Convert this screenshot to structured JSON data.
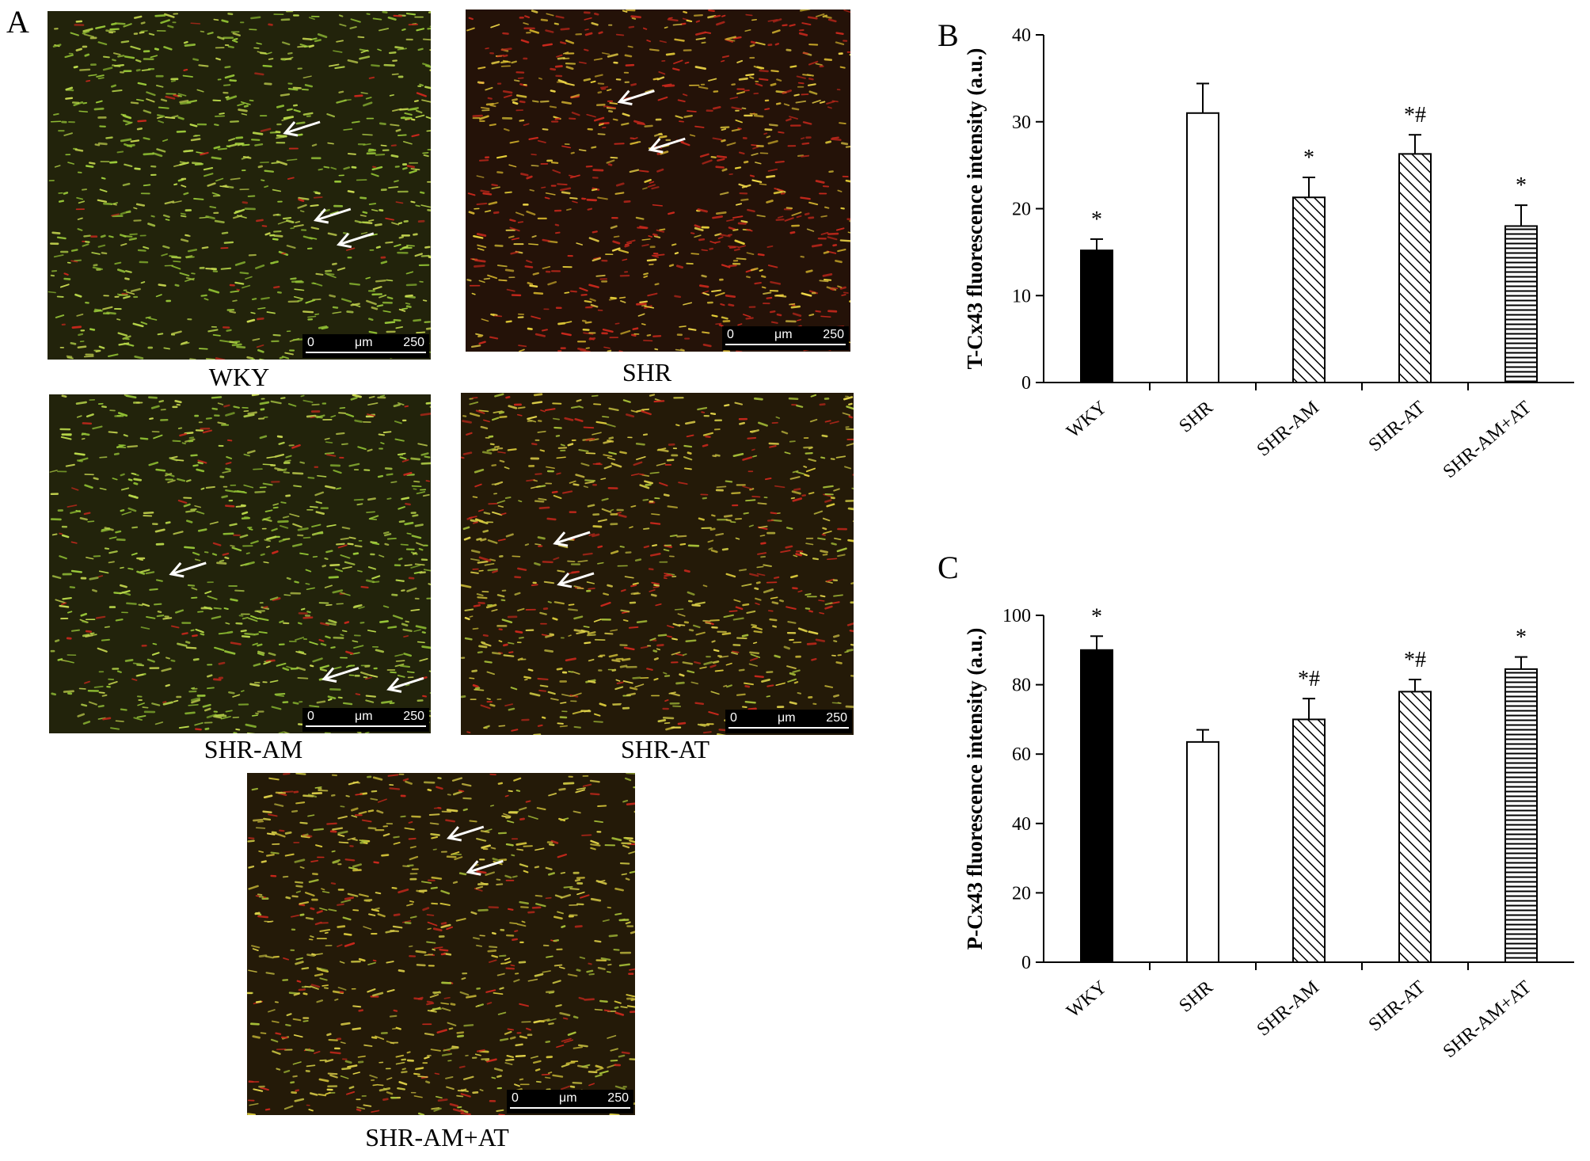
{
  "panel_a": {
    "letter": "A",
    "images": [
      {
        "caption": "WKY",
        "scale_min": "0",
        "scale_unit": "μm",
        "scale_max": "250",
        "tone": "green"
      },
      {
        "caption": "SHR",
        "scale_min": "0",
        "scale_unit": "μm",
        "scale_max": "250",
        "tone": "red-yellow"
      },
      {
        "caption": "SHR-AM",
        "scale_min": "0",
        "scale_unit": "μm",
        "scale_max": "250",
        "tone": "green"
      },
      {
        "caption": "SHR-AT",
        "scale_min": "0",
        "scale_unit": "μm",
        "scale_max": "250",
        "tone": "yellow"
      },
      {
        "caption": "SHR-AM+AT",
        "scale_min": "0",
        "scale_unit": "μm",
        "scale_max": "250",
        "tone": "yellow"
      }
    ]
  },
  "chart_data": [
    {
      "type": "bar",
      "panel": "B",
      "ylabel": "T-Cx43 fluorescence intensity (a.u.)",
      "xlabel": "",
      "ylim": [
        0,
        40
      ],
      "yticks": [
        0,
        10,
        20,
        30,
        40
      ],
      "categories": [
        "WKY",
        "SHR",
        "SHR-AM",
        "SHR-AT",
        "SHR-AM+AT"
      ],
      "values": [
        15.2,
        31.0,
        21.3,
        26.3,
        18.0
      ],
      "errors": [
        1.3,
        3.4,
        2.3,
        2.2,
        2.4
      ],
      "annotations": [
        "*",
        "",
        "*",
        "*#",
        "*"
      ],
      "fills": [
        "solid-black",
        "white",
        "diagonal-hatch",
        "diagonal-hatch",
        "horizontal-hatch"
      ]
    },
    {
      "type": "bar",
      "panel": "C",
      "ylabel": "P-Cx43 fluorescence intensity (a.u.)",
      "xlabel": "",
      "ylim": [
        0,
        100
      ],
      "yticks": [
        0,
        20,
        40,
        60,
        80,
        100
      ],
      "categories": [
        "WKY",
        "SHR",
        "SHR-AM",
        "SHR-AT",
        "SHR-AM+AT"
      ],
      "values": [
        90,
        63.5,
        70,
        78,
        84.5
      ],
      "errors": [
        4,
        3.5,
        6,
        3.5,
        3.5
      ],
      "annotations": [
        "*",
        "",
        "*#",
        "*#",
        "*"
      ],
      "fills": [
        "solid-black",
        "white",
        "diagonal-hatch",
        "diagonal-hatch",
        "horizontal-hatch"
      ]
    }
  ]
}
